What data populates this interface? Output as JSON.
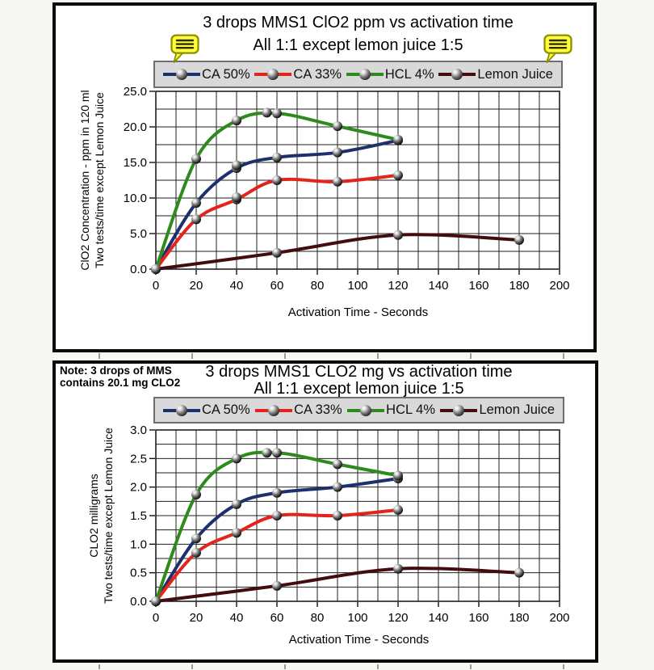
{
  "page": {
    "background": "#f7f7f3",
    "panel_background": "#ffffff",
    "panel_border": "#0a0a0a"
  },
  "icons": {
    "name": "comment-note-icon",
    "fill": "#ffff3d",
    "border": "#8e8e00",
    "lines": "#2e2e00",
    "count_on_top_chart": 2
  },
  "legend_style": {
    "background": "#d9d9d9",
    "border": "#6e6e6e"
  },
  "grid_color": "#1f1f1f",
  "chart_data": [
    {
      "type": "line",
      "title": "3 drops MMS1 ClO2 ppm vs activation time",
      "subtitle": "All 1:1 except lemon juice 1:5",
      "xlabel": "Activation Time - Seconds",
      "ylabel_line1": "ClO2 Concentration - ppm in 120 ml",
      "ylabel_line2": "Two tests/time except Lemon Juice",
      "xlim": [
        0,
        200
      ],
      "ylim": [
        0,
        25
      ],
      "x_minor_step": 10,
      "y_minor_step": 2.5,
      "x_tick_values": [
        0,
        20,
        40,
        60,
        80,
        100,
        120,
        140,
        160,
        180,
        200
      ],
      "x_tick_labels": [
        "0",
        "20",
        "40",
        "60",
        "80",
        "100",
        "120",
        "140",
        "160",
        "180",
        "200"
      ],
      "y_tick_values": [
        0,
        5,
        10,
        15,
        20,
        25
      ],
      "y_tick_labels": [
        "0.0",
        "5.0",
        "10.0",
        "15.0",
        "20.0",
        "25.0"
      ],
      "grid": true,
      "legend_position": "top",
      "series": [
        {
          "name": "CA 50%",
          "color": "#1e2f6e",
          "x": [
            0,
            20,
            40,
            60,
            90,
            120
          ],
          "y": [
            0,
            9.3,
            14.2,
            15.7,
            16.4,
            18.1
          ],
          "extra_points": [
            [
              40,
              14.6
            ]
          ]
        },
        {
          "name": "CA 33%",
          "color": "#e2241c",
          "x": [
            0,
            20,
            40,
            60,
            90,
            120
          ],
          "y": [
            0,
            7.0,
            9.8,
            12.5,
            12.3,
            13.2
          ],
          "extra_points": [
            [
              40,
              10.1
            ]
          ]
        },
        {
          "name": "HCL 4%",
          "color": "#2f8a1e",
          "x": [
            0,
            20,
            40,
            60,
            90,
            120
          ],
          "y": [
            0,
            15.5,
            20.9,
            21.9,
            20.1,
            18.2
          ],
          "extra_points": [
            [
              55,
              22.0
            ]
          ]
        },
        {
          "name": "Lemon Juice",
          "color": "#430c0e",
          "x": [
            0,
            60,
            120,
            180
          ],
          "y": [
            0,
            2.3,
            4.8,
            4.1
          ],
          "extra_points": []
        }
      ]
    },
    {
      "type": "line",
      "note_line1": "Note: 3 drops of MMS",
      "note_line2": "contains 20.1 mg CLO2",
      "title": "3 drops MMS1 CLO2 mg vs activation time",
      "subtitle": "All 1:1 except lemon juice 1:5",
      "xlabel": "Activation Time - Seconds",
      "ylabel_line1": "CLO2 milligrams",
      "ylabel_line2": "Two tests/time except Lemon Juice",
      "xlim": [
        0,
        200
      ],
      "ylim": [
        0,
        3
      ],
      "x_minor_step": 10,
      "y_minor_step": 0.25,
      "x_tick_values": [
        0,
        20,
        40,
        60,
        80,
        100,
        120,
        140,
        160,
        180,
        200
      ],
      "x_tick_labels": [
        "0",
        "20",
        "40",
        "60",
        "80",
        "100",
        "120",
        "140",
        "160",
        "180",
        "200"
      ],
      "y_tick_values": [
        0,
        0.5,
        1,
        1.5,
        2,
        2.5,
        3
      ],
      "y_tick_labels": [
        "0.0",
        "0.5",
        "1.0",
        "1.5",
        "2.0",
        "2.5",
        "3.0"
      ],
      "grid": true,
      "legend_position": "top",
      "series": [
        {
          "name": "CA 50%",
          "color": "#1e2f6e",
          "x": [
            0,
            20,
            40,
            60,
            90,
            120
          ],
          "y": [
            0,
            1.1,
            1.7,
            1.9,
            2.0,
            2.15
          ],
          "extra_points": []
        },
        {
          "name": "CA 33%",
          "color": "#e2241c",
          "x": [
            0,
            20,
            40,
            60,
            90,
            120
          ],
          "y": [
            0,
            0.85,
            1.2,
            1.5,
            1.5,
            1.6
          ],
          "extra_points": []
        },
        {
          "name": "HCL 4%",
          "color": "#2f8a1e",
          "x": [
            0,
            20,
            40,
            60,
            90,
            120
          ],
          "y": [
            0,
            1.87,
            2.5,
            2.6,
            2.4,
            2.2
          ],
          "extra_points": [
            [
              55,
              2.6
            ]
          ]
        },
        {
          "name": "Lemon Juice",
          "color": "#430c0e",
          "x": [
            0,
            60,
            120,
            180
          ],
          "y": [
            0,
            0.27,
            0.57,
            0.5
          ],
          "extra_points": []
        }
      ]
    }
  ]
}
